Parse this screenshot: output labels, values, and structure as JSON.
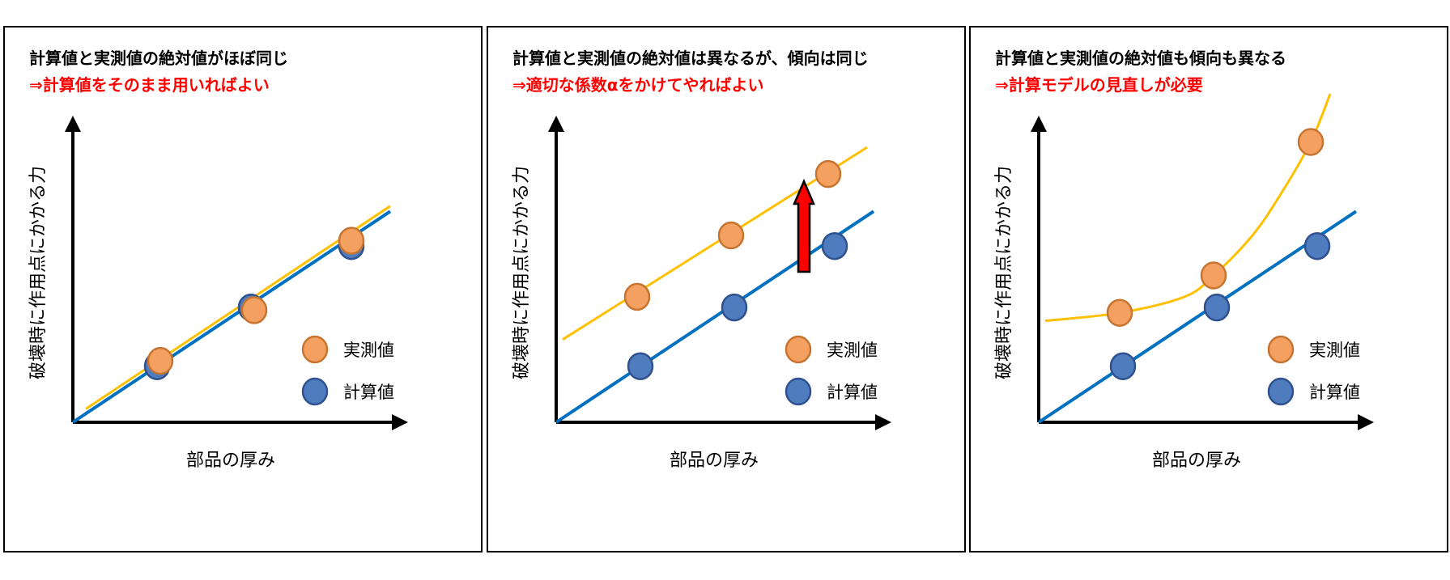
{
  "colors": {
    "measured": "#F4A060",
    "measured_stroke": "#C6742F",
    "calculated": "#4F7BBF",
    "calculated_stroke": "#2F528F",
    "measured_line": "#FFC000",
    "calculated_line": "#0070C0",
    "conclusion_text": "#FF0000",
    "arrow_fill": "#FF0000"
  },
  "chart_data": [
    {
      "type": "scatter",
      "title": "計算値と実測値の絶対値がほぼ同じ",
      "subtitle": "⇒計算値をそのまま用いればよい",
      "xlabel": "部品の厚み",
      "ylabel": "破壊時に作用点にかかる力",
      "xlim": [
        0,
        10
      ],
      "ylim": [
        0,
        10
      ],
      "legend": [
        {
          "key": "measured",
          "label": "実測値"
        },
        {
          "key": "calculated",
          "label": "計算値"
        }
      ],
      "series": [
        {
          "name": "計算値",
          "key": "calculated",
          "x": [
            2.6,
            5.5,
            8.6
          ],
          "y": [
            2.1,
            4.3,
            6.6
          ],
          "fit": "linear",
          "fit_x": [
            0,
            9.8
          ],
          "fit_y": [
            0,
            7.9
          ]
        },
        {
          "name": "実測値",
          "key": "measured",
          "x": [
            2.7,
            5.6,
            8.6
          ],
          "y": [
            2.3,
            4.2,
            6.8
          ],
          "fit": "linear",
          "fit_x": [
            0.4,
            9.8
          ],
          "fit_y": [
            0.5,
            8.1
          ]
        }
      ]
    },
    {
      "type": "scatter",
      "title": "計算値と実測値の絶対値は異なるが、傾向は同じ",
      "subtitle": "⇒適切な係数αをかけてやればよい",
      "xlabel": "部品の厚み",
      "ylabel": "破壊時に作用点にかかる力",
      "xlim": [
        0,
        10
      ],
      "ylim": [
        0,
        10
      ],
      "legend": [
        {
          "key": "measured",
          "label": "実測値"
        },
        {
          "key": "calculated",
          "label": "計算値"
        }
      ],
      "annotation": "red-up-arrow",
      "series": [
        {
          "name": "計算値",
          "key": "calculated",
          "x": [
            2.6,
            5.5,
            8.6
          ],
          "y": [
            2.1,
            4.3,
            6.6
          ],
          "fit": "linear",
          "fit_x": [
            0,
            9.8
          ],
          "fit_y": [
            0,
            7.9
          ]
        },
        {
          "name": "実測値",
          "key": "measured",
          "x": [
            2.5,
            5.4,
            8.4
          ],
          "y": [
            4.7,
            7.0,
            9.3
          ],
          "fit": "linear",
          "fit_x": [
            0.2,
            9.6
          ],
          "fit_y": [
            3.1,
            10.3
          ]
        }
      ]
    },
    {
      "type": "scatter",
      "title": "計算値と実測値の絶対値も傾向も異なる",
      "subtitle": "⇒計算モデルの見直しが必要",
      "xlabel": "部品の厚み",
      "ylabel": "破壊時に作用点にかかる力",
      "xlim": [
        0,
        10
      ],
      "ylim": [
        0,
        10
      ],
      "legend": [
        {
          "key": "measured",
          "label": "実測値"
        },
        {
          "key": "calculated",
          "label": "計算値"
        }
      ],
      "series": [
        {
          "name": "計算値",
          "key": "calculated",
          "x": [
            2.6,
            5.5,
            8.6
          ],
          "y": [
            2.1,
            4.3,
            6.6
          ],
          "fit": "linear",
          "fit_x": [
            0,
            9.8
          ],
          "fit_y": [
            0,
            7.9
          ]
        },
        {
          "name": "実測値",
          "key": "measured",
          "x": [
            2.5,
            5.4,
            8.4
          ],
          "y": [
            4.1,
            5.5,
            10.5
          ],
          "fit": "curve",
          "fit_x": [
            0.2,
            2.5,
            4.5,
            5.4,
            6.6,
            7.5,
            8.4,
            9.0
          ],
          "fit_y": [
            3.8,
            4.1,
            4.7,
            5.5,
            7.0,
            8.6,
            10.5,
            12.3
          ]
        }
      ]
    }
  ]
}
